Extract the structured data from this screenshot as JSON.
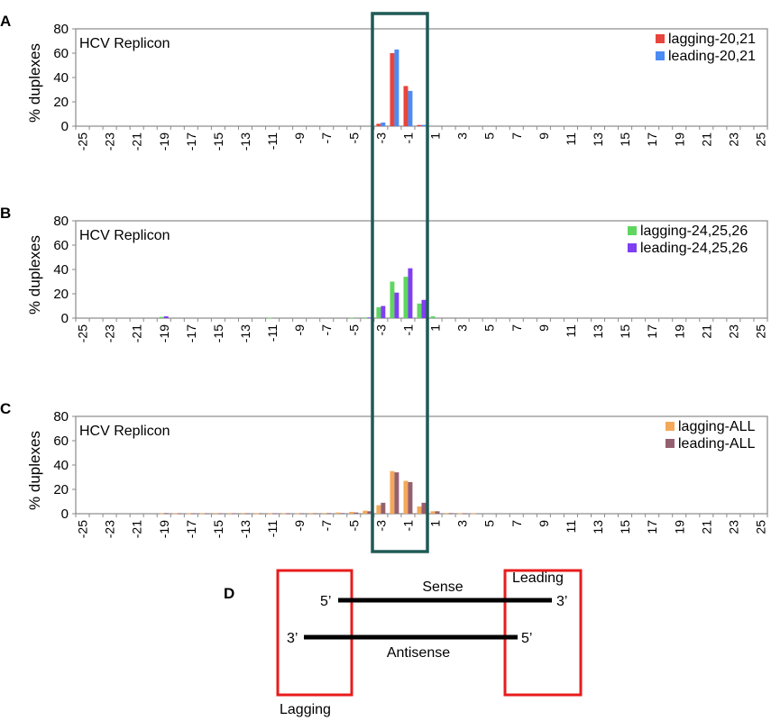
{
  "panels": [
    {
      "letter": "A",
      "chart_title": "HCV Replicon",
      "ylabel": "% duplexes",
      "series": [
        {
          "name": "lagging-20,21",
          "color": "#e8453c"
        },
        {
          "name": "leading-20,21",
          "color": "#4b8bf4"
        }
      ]
    },
    {
      "letter": "B",
      "chart_title": "HCV Replicon",
      "ylabel": "% duplexes",
      "series": [
        {
          "name": "lagging-24,25,26",
          "color": "#5fd65f"
        },
        {
          "name": "leading-24,25,26",
          "color": "#7f3ff2"
        }
      ]
    },
    {
      "letter": "C",
      "chart_title": "HCV Replicon",
      "ylabel": "% duplexes",
      "series": [
        {
          "name": "lagging-ALL",
          "color": "#f4a85a"
        },
        {
          "name": "leading-ALL",
          "color": "#946070"
        }
      ]
    }
  ],
  "highlight_color": "#1f5a56",
  "chart_data": [
    {
      "type": "bar",
      "title": "HCV Replicon",
      "ylabel": "% duplexes",
      "ylim": [
        0,
        80
      ],
      "yticks": [
        0,
        20,
        40,
        60,
        80
      ],
      "x": [
        -25,
        -24,
        -23,
        -22,
        -21,
        -20,
        -19,
        -18,
        -17,
        -16,
        -15,
        -14,
        -13,
        -12,
        -11,
        -10,
        -9,
        -8,
        -7,
        -6,
        -5,
        -4,
        -3,
        -2,
        -1,
        0,
        1,
        2,
        3,
        4,
        5,
        6,
        7,
        8,
        9,
        10,
        11,
        12,
        13,
        14,
        15,
        16,
        17,
        18,
        19,
        20,
        21,
        22,
        23,
        24,
        25
      ],
      "xtick_labels": [
        "-25",
        "-23",
        "-21",
        "-19",
        "-17",
        "-15",
        "-13",
        "-11",
        "-9",
        "-7",
        "-5",
        "-3",
        "-1",
        "1",
        "3",
        "5",
        "7",
        "9",
        "11",
        "13",
        "15",
        "17",
        "19",
        "21",
        "23",
        "25"
      ],
      "legend_position": "top-right",
      "series": [
        {
          "name": "lagging-20,21",
          "values": [
            0,
            0,
            0,
            0,
            0,
            0,
            0,
            0,
            0,
            0,
            0,
            0,
            0,
            0,
            0,
            0,
            0,
            0,
            0,
            0,
            0,
            0,
            2,
            60,
            33,
            1,
            0,
            0,
            0,
            0,
            0,
            0,
            0,
            0,
            0,
            0,
            0,
            0,
            0,
            0,
            0,
            0,
            0,
            0,
            0,
            0,
            0,
            0,
            0,
            0,
            0
          ]
        },
        {
          "name": "leading-20,21",
          "values": [
            0,
            0,
            0,
            0,
            0,
            0,
            0,
            0,
            0,
            0,
            0,
            0,
            0,
            0,
            0,
            0,
            0,
            0,
            0,
            0,
            0,
            0,
            3,
            63,
            29,
            1,
            0,
            0,
            0,
            0,
            0,
            0,
            0,
            0,
            0,
            0,
            0,
            0,
            0,
            0,
            0,
            0,
            0,
            0,
            0,
            0,
            0,
            0,
            0,
            0,
            0
          ]
        }
      ]
    },
    {
      "type": "bar",
      "title": "HCV Replicon",
      "ylabel": "% duplexes",
      "ylim": [
        0,
        80
      ],
      "yticks": [
        0,
        20,
        40,
        60,
        80
      ],
      "x": [
        -25,
        -24,
        -23,
        -22,
        -21,
        -20,
        -19,
        -18,
        -17,
        -16,
        -15,
        -14,
        -13,
        -12,
        -11,
        -10,
        -9,
        -8,
        -7,
        -6,
        -5,
        -4,
        -3,
        -2,
        -1,
        0,
        1,
        2,
        3,
        4,
        5,
        6,
        7,
        8,
        9,
        10,
        11,
        12,
        13,
        14,
        15,
        16,
        17,
        18,
        19,
        20,
        21,
        22,
        23,
        24,
        25
      ],
      "xtick_labels": [
        "-25",
        "-23",
        "-21",
        "-19",
        "-17",
        "-15",
        "-13",
        "-11",
        "-9",
        "-7",
        "-5",
        "-3",
        "-1",
        "1",
        "3",
        "5",
        "7",
        "9",
        "11",
        "13",
        "15",
        "17",
        "19",
        "21",
        "23",
        "25"
      ],
      "legend_position": "top-right",
      "series": [
        {
          "name": "lagging-24,25,26",
          "values": [
            0,
            0,
            0,
            0,
            0,
            0,
            1,
            0,
            0,
            0,
            0,
            0,
            0,
            0,
            0.3,
            0,
            0,
            0,
            0,
            0,
            0.3,
            0.5,
            9,
            30,
            34,
            12,
            1.5,
            0,
            0,
            0,
            0,
            0,
            0,
            0,
            0,
            0,
            0,
            0,
            0,
            0,
            0,
            0,
            0,
            0,
            0,
            0,
            0,
            0,
            0,
            0,
            0
          ]
        },
        {
          "name": "leading-24,25,26",
          "values": [
            0,
            0,
            0,
            0,
            0,
            0,
            1.5,
            0,
            0,
            0,
            0,
            0,
            0,
            0,
            0,
            0,
            0,
            0,
            0,
            0,
            0,
            0.5,
            10,
            21,
            41,
            15,
            0,
            0,
            0,
            0,
            0,
            0,
            0,
            0,
            0,
            0,
            0,
            0,
            0,
            0,
            0,
            0,
            0,
            0,
            0,
            0,
            0,
            0,
            0,
            0,
            0
          ]
        }
      ]
    },
    {
      "type": "bar",
      "title": "HCV Replicon",
      "ylabel": "% duplexes",
      "ylim": [
        0,
        80
      ],
      "yticks": [
        0,
        20,
        40,
        60,
        80
      ],
      "x": [
        -25,
        -24,
        -23,
        -22,
        -21,
        -20,
        -19,
        -18,
        -17,
        -16,
        -15,
        -14,
        -13,
        -12,
        -11,
        -10,
        -9,
        -8,
        -7,
        -6,
        -5,
        -4,
        -3,
        -2,
        -1,
        0,
        1,
        2,
        3,
        4,
        5,
        6,
        7,
        8,
        9,
        10,
        11,
        12,
        13,
        14,
        15,
        16,
        17,
        18,
        19,
        20,
        21,
        22,
        23,
        24,
        25
      ],
      "xtick_labels": [
        "-25",
        "-23",
        "-21",
        "-19",
        "-17",
        "-15",
        "-13",
        "-11",
        "-9",
        "-7",
        "-5",
        "-3",
        "-1",
        "1",
        "3",
        "5",
        "7",
        "9",
        "11",
        "13",
        "15",
        "17",
        "19",
        "21",
        "23",
        "25"
      ],
      "legend_position": "top-right",
      "series": [
        {
          "name": "lagging-ALL",
          "values": [
            0,
            0,
            0,
            0,
            0,
            0,
            0.3,
            0.3,
            0.3,
            0.3,
            0.5,
            0.5,
            0.5,
            0.3,
            0.3,
            0.3,
            0.3,
            0.5,
            0.5,
            1,
            1.5,
            2.5,
            7,
            35,
            27,
            6,
            2,
            0.5,
            0.3,
            0.3,
            0,
            0,
            0,
            0,
            0,
            0,
            0,
            0,
            0,
            0,
            0,
            0,
            0,
            0,
            0,
            0,
            0,
            0,
            0,
            0,
            0
          ]
        },
        {
          "name": "leading-ALL",
          "values": [
            0,
            0,
            0,
            0,
            0,
            0,
            0.5,
            0.3,
            0.3,
            0.3,
            0.3,
            0.3,
            0.3,
            0.3,
            0.3,
            0.3,
            0.3,
            0.3,
            0.5,
            0.5,
            1,
            2,
            9,
            34,
            26,
            9,
            2,
            0.5,
            0.3,
            0,
            0,
            0,
            0,
            0,
            0,
            0,
            0,
            0,
            0,
            0,
            0,
            0,
            0,
            0,
            0,
            0,
            0,
            0,
            0,
            0,
            0
          ]
        }
      ]
    }
  ],
  "diagram": {
    "letter": "D",
    "sense_label": "Sense",
    "antisense_label": "Antisense",
    "leading_label": "Leading",
    "lagging_label": "Lagging",
    "sense_5p": "5’",
    "sense_3p": "3’",
    "antisense_3p": "3’",
    "antisense_5p": "5’",
    "box_color": "#e81c1c"
  }
}
